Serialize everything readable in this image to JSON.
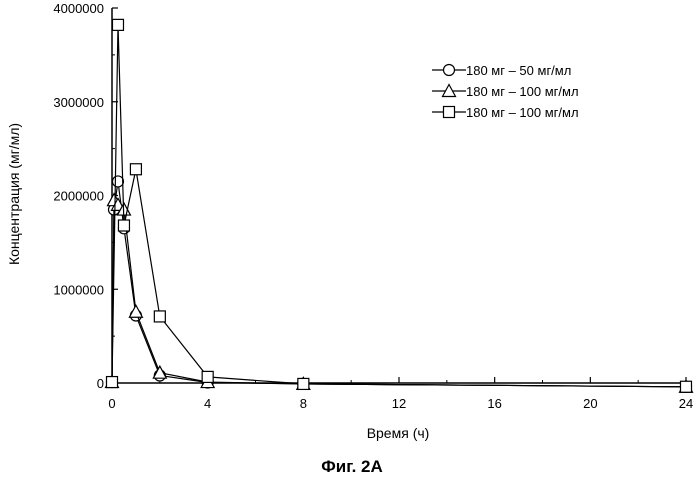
{
  "chart_data": {
    "type": "line",
    "title": "",
    "caption": "Фиг. 2А",
    "xlabel": "Время (ч)",
    "ylabel": "Концентрация (мг/мл)",
    "xlim": [
      0,
      24
    ],
    "ylim": [
      0,
      4000000
    ],
    "xticks": [
      "0",
      "4",
      "8",
      "12",
      "16",
      "20",
      "24"
    ],
    "yticks": [
      "0",
      "1000000",
      "2000000",
      "3000000",
      "4000000"
    ],
    "grid": false,
    "legend_position": "top-right",
    "series": [
      {
        "name": "180 мг – 50 мг/мл",
        "marker": "circle",
        "x": [
          0,
          0.083,
          0.25,
          0.5,
          1,
          2,
          4,
          8,
          24
        ],
        "y": [
          10000,
          1850000,
          2150000,
          1650000,
          720000,
          80000,
          5000,
          -10000,
          -40000
        ]
      },
      {
        "name": "180 мг – 100 мг/мл",
        "marker": "triangle",
        "x": [
          0,
          0.083,
          0.25,
          0.5,
          1,
          2,
          4,
          8,
          24
        ],
        "y": [
          10000,
          1950000,
          1900000,
          1850000,
          760000,
          110000,
          10000,
          -10000,
          -40000
        ]
      },
      {
        "name": "180 мг – 100 мг/мл",
        "marker": "square",
        "x": [
          0,
          0.25,
          0.5,
          1,
          2,
          4,
          8,
          24
        ],
        "y": [
          10000,
          3820000,
          1680000,
          2280000,
          710000,
          65000,
          -10000,
          -40000
        ]
      }
    ]
  }
}
